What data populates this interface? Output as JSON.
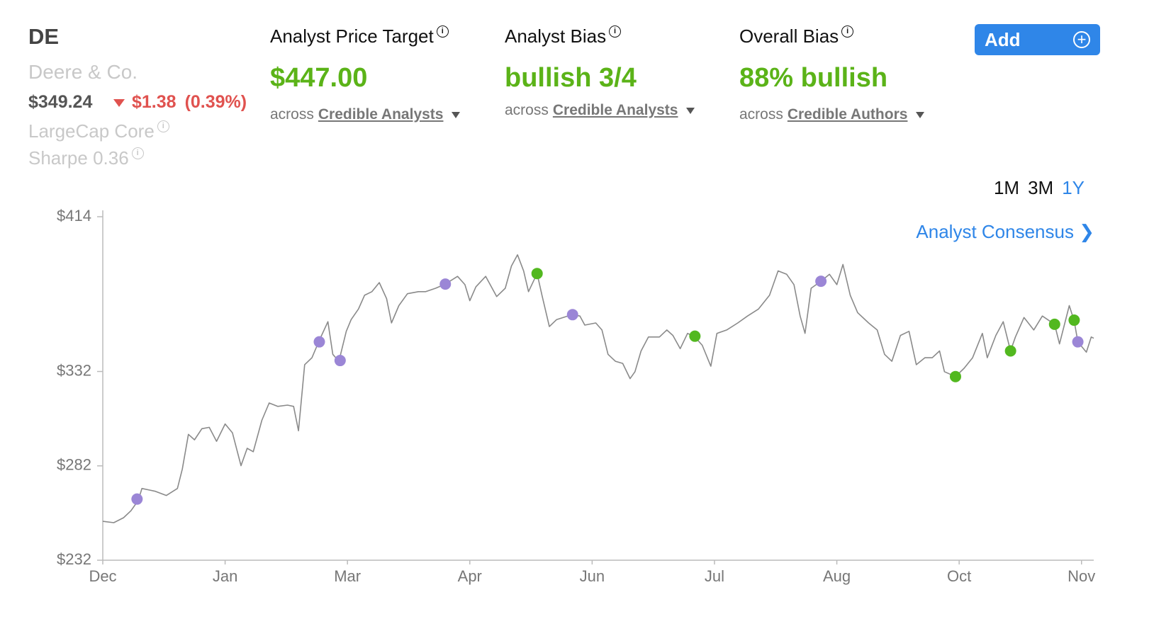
{
  "header": {
    "ticker": "DE",
    "name": "Deere & Co.",
    "price": "$349.24",
    "change": "$1.38",
    "change_pct": "(0.39%)",
    "style": "LargeCap Core",
    "sharpe": "Sharpe 0.36"
  },
  "metrics": [
    {
      "label": "Analyst Price Target",
      "value": "$447.00",
      "across": "across",
      "source": "Credible Analysts"
    },
    {
      "label": "Analyst Bias",
      "value": "bullish 3/4",
      "across": "across",
      "source": "Credible Analysts"
    },
    {
      "label": "Overall Bias",
      "value": "88% bullish",
      "across": "across",
      "source": "Credible Authors"
    }
  ],
  "add_button": "Add",
  "ranges": {
    "options": [
      "1M",
      "3M",
      "1Y"
    ],
    "selected": 2
  },
  "consensus_link": "Analyst Consensus",
  "chart_data": {
    "type": "line",
    "x": [
      0,
      0.09,
      0.17,
      0.23,
      0.29,
      0.32,
      0.38,
      0.43,
      0.52,
      0.61,
      0.65,
      0.7,
      0.75,
      0.81,
      0.87,
      0.93,
      1.0,
      1.06,
      1.13,
      1.18,
      1.23,
      1.3,
      1.36,
      1.43,
      1.51,
      1.56,
      1.6,
      1.65,
      1.71,
      1.77,
      1.84,
      1.88,
      1.93,
      1.99,
      2.03,
      2.09,
      2.14,
      2.2,
      2.26,
      2.32,
      2.36,
      2.42,
      2.49,
      2.58,
      2.64,
      2.72,
      2.8,
      2.9,
      2.96,
      3.0,
      3.05,
      3.13,
      3.22,
      3.29,
      3.34,
      3.39,
      3.44,
      3.48,
      3.55,
      3.59,
      3.65,
      3.71,
      3.8,
      3.84,
      3.9,
      3.94,
      4.03,
      4.08,
      4.13,
      4.19,
      4.25,
      4.31,
      4.35,
      4.4,
      4.46,
      4.55,
      4.61,
      4.66,
      4.72,
      4.78,
      4.84,
      4.9,
      4.97,
      5.02,
      5.1,
      5.19,
      5.27,
      5.36,
      5.45,
      5.52,
      5.59,
      5.65,
      5.7,
      5.74,
      5.79,
      5.87,
      5.94,
      6.0,
      6.05,
      6.11,
      6.17,
      6.26,
      6.33,
      6.39,
      6.45,
      6.52,
      6.59,
      6.65,
      6.72,
      6.78,
      6.84,
      6.88,
      6.97,
      7.04,
      7.11,
      7.19,
      7.23,
      7.3,
      7.36,
      7.42,
      7.46,
      7.53,
      7.61,
      7.68,
      7.78,
      7.82,
      7.9,
      7.94,
      7.97,
      8.04,
      8.08,
      8.1
    ],
    "series": [
      {
        "color": "#8a8a8a",
        "values": [
          252.6,
          251.9,
          254.5,
          258.2,
          263.7,
          270.0,
          269.2,
          268.5,
          266.3,
          270.0,
          280.3,
          298.7,
          295.8,
          301.7,
          302.4,
          295.0,
          304.2,
          299.5,
          282.1,
          291.3,
          289.5,
          306.1,
          315.3,
          313.5,
          314.2,
          313.5,
          300.6,
          335.6,
          339.3,
          348.5,
          358.4,
          341.1,
          337.4,
          353.3,
          359.5,
          365.1,
          372.4,
          374.3,
          379.1,
          370.6,
          357.7,
          366.9,
          373.2,
          374.3,
          374.3,
          376.1,
          378.3,
          382.4,
          378.0,
          369.5,
          376.9,
          382.4,
          371.7,
          376.1,
          387.9,
          393.8,
          385.3,
          374.3,
          383.9,
          372.4,
          355.8,
          359.5,
          361.4,
          362.1,
          361.4,
          356.6,
          357.7,
          354.0,
          341.1,
          337.4,
          336.3,
          328.2,
          331.9,
          342.9,
          350.3,
          350.3,
          354.0,
          351.1,
          344.1,
          352.2,
          350.3,
          345.9,
          334.8,
          352.2,
          354.0,
          357.7,
          361.4,
          365.1,
          372.4,
          385.3,
          383.5,
          378.0,
          361.4,
          352.2,
          376.1,
          379.8,
          383.5,
          378.0,
          388.7,
          372.4,
          363.2,
          357.7,
          354.0,
          341.1,
          337.4,
          351.1,
          353.3,
          335.6,
          339.3,
          339.3,
          342.9,
          331.9,
          329.3,
          333.7,
          339.3,
          352.2,
          339.3,
          351.1,
          358.4,
          342.9,
          350.3,
          360.6,
          354.0,
          361.4,
          357.0,
          346.6,
          366.9,
          358.8,
          347.7,
          342.2,
          350.3,
          349.6
        ]
      }
    ],
    "points": [
      {
        "color": "#9b86d6",
        "x": [
          0.28,
          1.77,
          1.94,
          2.8,
          3.84,
          5.87,
          7.97
        ],
        "values": [
          264.4,
          347.7,
          337.8,
          378.3,
          362.1,
          379.8,
          347.7
        ]
      },
      {
        "color": "#52b81f",
        "x": [
          3.55,
          4.84,
          6.97,
          7.42,
          7.78,
          7.94
        ],
        "values": [
          383.9,
          350.7,
          329.3,
          342.9,
          357.0,
          359.2
        ]
      }
    ],
    "xlim": [
      0,
      8.1
    ],
    "xticks": [
      {
        "value": 0,
        "label": "Dec"
      },
      {
        "value": 1,
        "label": "Jan"
      },
      {
        "value": 2,
        "label": "Mar"
      },
      {
        "value": 3,
        "label": "Apr"
      },
      {
        "value": 4,
        "label": "Jun"
      },
      {
        "value": 5,
        "label": "Jul"
      },
      {
        "value": 6,
        "label": "Aug"
      },
      {
        "value": 7,
        "label": "Oct"
      },
      {
        "value": 8,
        "label": "Nov"
      }
    ],
    "ylim": [
      232,
      414
    ],
    "yticks": [
      {
        "value": 232,
        "label": "$232"
      },
      {
        "value": 282,
        "label": "$282"
      },
      {
        "value": 332,
        "label": "$332"
      },
      {
        "value": 414,
        "label": "$414"
      }
    ],
    "grid": false
  }
}
